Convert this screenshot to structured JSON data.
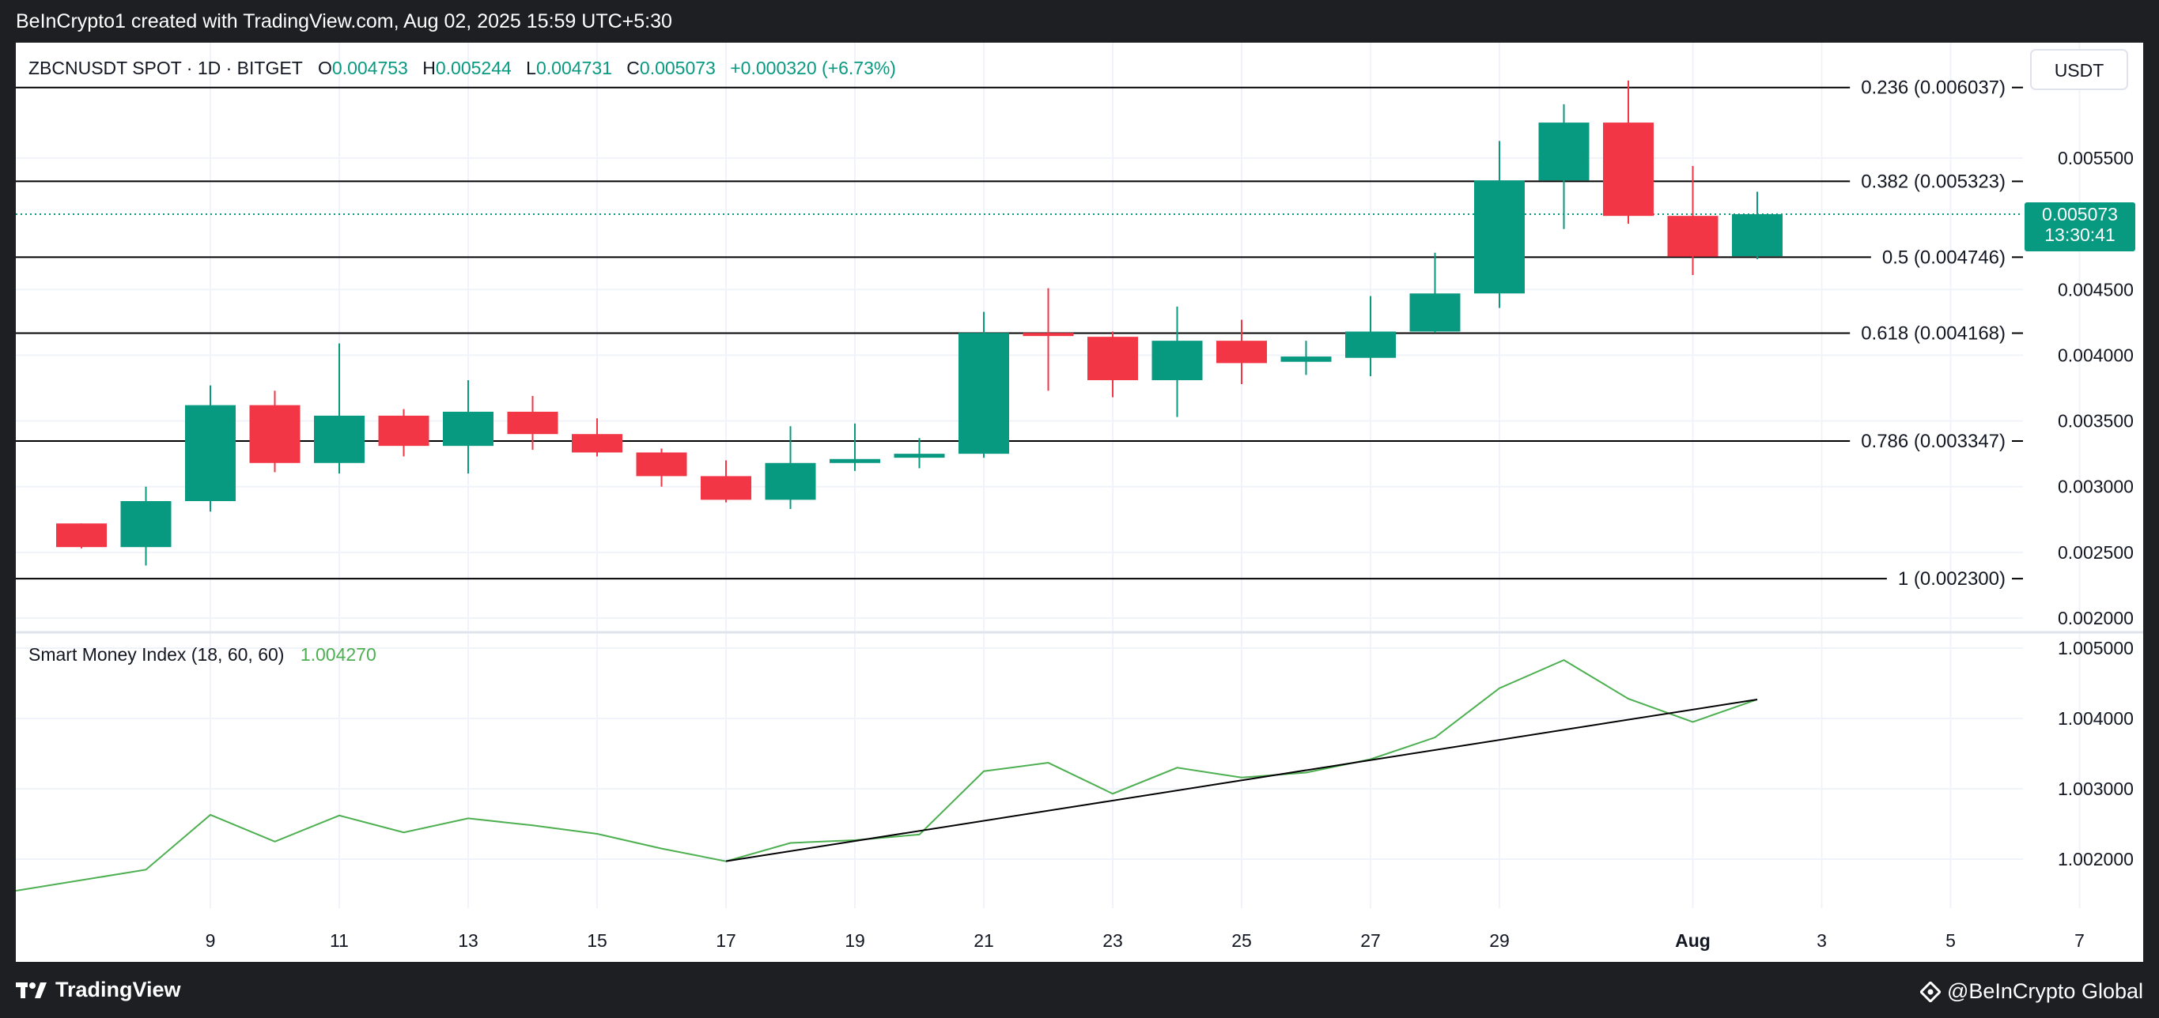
{
  "header": {
    "attribution": "BeInCrypto1 created with TradingView.com, Aug 02, 2025 15:59 UTC+5:30"
  },
  "footer": {
    "left_brand": "TradingView",
    "right_brand": "@BeInCrypto Global"
  },
  "colors": {
    "up": "#089981",
    "down": "#f23645",
    "smi_line": "#4caf50",
    "background_dark": "#1e1f23",
    "panel": "#ffffff"
  },
  "legend": {
    "symbol": "ZBCNUSDT SPOT · 1D · BITGET",
    "o_label": "O",
    "o_value": "0.004753",
    "h_label": "H",
    "h_value": "0.005244",
    "l_label": "L",
    "l_value": "0.004731",
    "c_label": "C",
    "c_value": "0.005073",
    "change": "+0.000320 (+6.73%)"
  },
  "currency": "USDT",
  "price_tag": {
    "price": "0.005073",
    "countdown": "13:30:41"
  },
  "indicator": {
    "name": "Smart Money Index (18, 60, 60)",
    "value": "1.004270"
  },
  "chart_data": [
    {
      "type": "candlestick",
      "title": "ZBCNUSDT SPOT · 1D · BITGET",
      "y_axis_side": "right",
      "ylim": [
        0.0019,
        0.0063
      ],
      "y_ticks": [
        "0.005500",
        "0.004500",
        "0.004000",
        "0.003500",
        "0.003000",
        "0.002500",
        "0.002000"
      ],
      "x_ticks": [
        {
          "day": 9,
          "label": "9"
        },
        {
          "day": 11,
          "label": "11"
        },
        {
          "day": 13,
          "label": "13"
        },
        {
          "day": 15,
          "label": "15"
        },
        {
          "day": 17,
          "label": "17"
        },
        {
          "day": 19,
          "label": "19"
        },
        {
          "day": 21,
          "label": "21"
        },
        {
          "day": 23,
          "label": "23"
        },
        {
          "day": 25,
          "label": "25"
        },
        {
          "day": 27,
          "label": "27"
        },
        {
          "day": 29,
          "label": "29"
        },
        {
          "day": 32,
          "label": "Aug"
        },
        {
          "day": 34,
          "label": "3"
        },
        {
          "day": 36,
          "label": "5"
        },
        {
          "day": 38,
          "label": "7"
        }
      ],
      "candles": [
        {
          "day": 7,
          "date": "Jul 07",
          "o": 0.00272,
          "h": 0.00272,
          "l": 0.00253,
          "c": 0.00254
        },
        {
          "day": 8,
          "date": "Jul 08",
          "o": 0.00254,
          "h": 0.003,
          "l": 0.0024,
          "c": 0.00289
        },
        {
          "day": 9,
          "date": "Jul 09",
          "o": 0.00289,
          "h": 0.00377,
          "l": 0.00281,
          "c": 0.00362
        },
        {
          "day": 10,
          "date": "Jul 10",
          "o": 0.00362,
          "h": 0.00373,
          "l": 0.00311,
          "c": 0.00318
        },
        {
          "day": 11,
          "date": "Jul 11",
          "o": 0.00318,
          "h": 0.00409,
          "l": 0.0031,
          "c": 0.00354
        },
        {
          "day": 12,
          "date": "Jul 12",
          "o": 0.00354,
          "h": 0.00359,
          "l": 0.00323,
          "c": 0.00331
        },
        {
          "day": 13,
          "date": "Jul 13",
          "o": 0.00331,
          "h": 0.00381,
          "l": 0.0031,
          "c": 0.00357
        },
        {
          "day": 14,
          "date": "Jul 14",
          "o": 0.00357,
          "h": 0.00369,
          "l": 0.00328,
          "c": 0.0034
        },
        {
          "day": 15,
          "date": "Jul 15",
          "o": 0.0034,
          "h": 0.00352,
          "l": 0.00323,
          "c": 0.00326
        },
        {
          "day": 16,
          "date": "Jul 16",
          "o": 0.00326,
          "h": 0.00329,
          "l": 0.003,
          "c": 0.00308
        },
        {
          "day": 17,
          "date": "Jul 17",
          "o": 0.00308,
          "h": 0.0032,
          "l": 0.00288,
          "c": 0.0029
        },
        {
          "day": 18,
          "date": "Jul 18",
          "o": 0.0029,
          "h": 0.00346,
          "l": 0.00283,
          "c": 0.00318
        },
        {
          "day": 19,
          "date": "Jul 19",
          "o": 0.00318,
          "h": 0.00348,
          "l": 0.00312,
          "c": 0.00321
        },
        {
          "day": 20,
          "date": "Jul 20",
          "o": 0.00322,
          "h": 0.00337,
          "l": 0.00314,
          "c": 0.00325
        },
        {
          "day": 21,
          "date": "Jul 21",
          "o": 0.00325,
          "h": 0.00433,
          "l": 0.00322,
          "c": 0.00417
        },
        {
          "day": 22,
          "date": "Jul 22",
          "o": 0.00417,
          "h": 0.00451,
          "l": 0.00373,
          "c": 0.00415
        },
        {
          "day": 23,
          "date": "Jul 23",
          "o": 0.00414,
          "h": 0.00418,
          "l": 0.00368,
          "c": 0.00381
        },
        {
          "day": 24,
          "date": "Jul 24",
          "o": 0.00381,
          "h": 0.00437,
          "l": 0.00353,
          "c": 0.00411
        },
        {
          "day": 25,
          "date": "Jul 25",
          "o": 0.00411,
          "h": 0.00427,
          "l": 0.00378,
          "c": 0.00394
        },
        {
          "day": 26,
          "date": "Jul 26",
          "o": 0.00395,
          "h": 0.00411,
          "l": 0.00385,
          "c": 0.00399
        },
        {
          "day": 27,
          "date": "Jul 27",
          "o": 0.00398,
          "h": 0.00445,
          "l": 0.00384,
          "c": 0.00418
        },
        {
          "day": 28,
          "date": "Jul 28",
          "o": 0.00418,
          "h": 0.00478,
          "l": 0.00417,
          "c": 0.00447
        },
        {
          "day": 29,
          "date": "Jul 29",
          "o": 0.00447,
          "h": 0.00563,
          "l": 0.00436,
          "c": 0.00533
        },
        {
          "day": 30,
          "date": "Jul 30",
          "o": 0.00533,
          "h": 0.00591,
          "l": 0.00496,
          "c": 0.00577
        },
        {
          "day": 31,
          "date": "Jul 31",
          "o": 0.00577,
          "h": 0.00609,
          "l": 0.005,
          "c": 0.00506
        },
        {
          "day": 32,
          "date": "Aug 01",
          "o": 0.00506,
          "h": 0.00544,
          "l": 0.00461,
          "c": 0.00475
        },
        {
          "day": 33,
          "date": "Aug 02",
          "o": 0.004753,
          "h": 0.005244,
          "l": 0.004731,
          "c": 0.005073
        }
      ],
      "fib_levels": [
        {
          "label": "0.236 (0.006037)",
          "value": 0.006037
        },
        {
          "label": "0.382 (0.005323)",
          "value": 0.005323
        },
        {
          "label": "0.5 (0.004746)",
          "value": 0.004746
        },
        {
          "label": "0.618 (0.004168)",
          "value": 0.004168
        },
        {
          "label": "0.786 (0.003347)",
          "value": 0.003347
        },
        {
          "label": "1 (0.002300)",
          "value": 0.0023
        }
      ],
      "last_price": 0.005073
    },
    {
      "type": "line",
      "title": "Smart Money Index (18, 60, 60)",
      "ylim": [
        1.0012,
        1.0052
      ],
      "y_ticks": [
        "1.005000",
        "1.004000",
        "1.003000",
        "1.002000"
      ],
      "series": [
        {
          "name": "Smart Money Index (18, 60, 60)",
          "x": [
            7,
            8,
            9,
            10,
            11,
            12,
            13,
            14,
            15,
            16,
            17,
            18,
            19,
            20,
            21,
            22,
            23,
            24,
            25,
            26,
            27,
            28,
            29,
            30,
            31,
            32,
            33
          ],
          "values": [
            1.00155,
            1.00185,
            1.00263,
            1.00225,
            1.00262,
            1.00238,
            1.00258,
            1.00248,
            1.00236,
            1.00215,
            1.00197,
            1.00223,
            1.00227,
            1.00235,
            1.00325,
            1.00337,
            1.00293,
            1.0033,
            1.00316,
            1.00323,
            1.00342,
            1.00373,
            1.00443,
            1.00483,
            1.00428,
            1.00395,
            1.00427
          ]
        }
      ],
      "trendline": {
        "x": [
          17,
          33
        ],
        "y": [
          1.00197,
          1.00427
        ]
      }
    }
  ]
}
